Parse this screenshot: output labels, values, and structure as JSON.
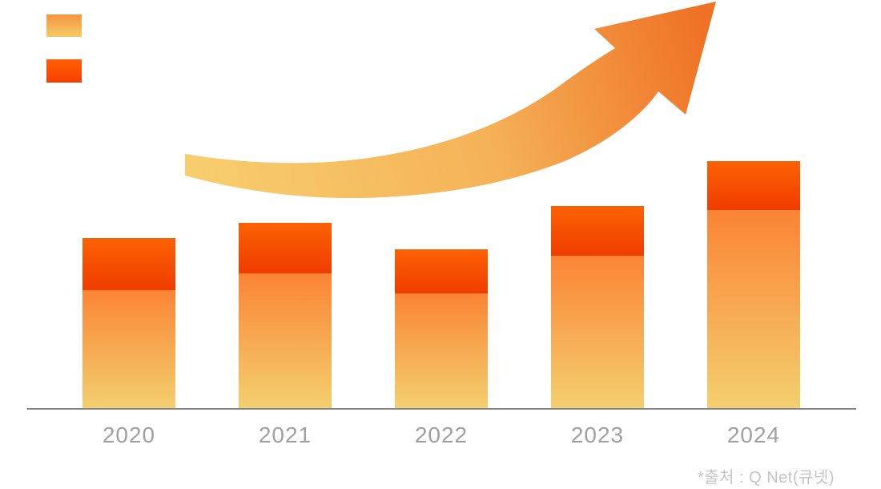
{
  "page": {
    "background": "#FFFFFF"
  },
  "legend": {
    "position": "top-left",
    "note": "color swatches only, no text labels visible",
    "items": [
      {
        "name": "base-series-swatch",
        "gradient": [
          "#F79542",
          "#F5CB66"
        ]
      },
      {
        "name": "top-series-swatch",
        "gradient": [
          "#FF5F02",
          "#F64001"
        ]
      }
    ]
  },
  "chart_data": {
    "type": "bar",
    "stacked": true,
    "title": "",
    "xlabel": "",
    "ylabel": "",
    "categories": [
      "2020",
      "2021",
      "2022",
      "2023",
      "2024"
    ],
    "series": [
      {
        "name": "base-segment",
        "color_gradient": [
          "#FB8435",
          "#F3CF6E"
        ],
        "values": [
          147,
          168,
          143,
          190,
          247
        ]
      },
      {
        "name": "top-segment",
        "color_gradient": [
          "#FB6202",
          "#F03C00"
        ],
        "values": [
          65,
          63,
          55,
          62,
          61
        ]
      }
    ],
    "totals": [
      212,
      231,
      198,
      252,
      308
    ],
    "value_unit": "relative height in px (chart displays no numeric axis, ticks or value labels)",
    "grid": false,
    "axis": {
      "y_labels_shown": false,
      "y_ticks": [],
      "x_labels_color": "#A0A0A0",
      "baseline_color": "#828282"
    },
    "legend_position": "top-left (swatches only)",
    "annotations": [
      {
        "name": "growth-arrow",
        "description": "curved upward swoosh arrow from lower-left to upper-right",
        "gradient": [
          "#F7CE6F",
          "#F5B257",
          "#EF7125"
        ]
      }
    ]
  },
  "footer": {
    "source": "*출처 : Q Net(큐넷)",
    "color": "#C5C5C5"
  }
}
